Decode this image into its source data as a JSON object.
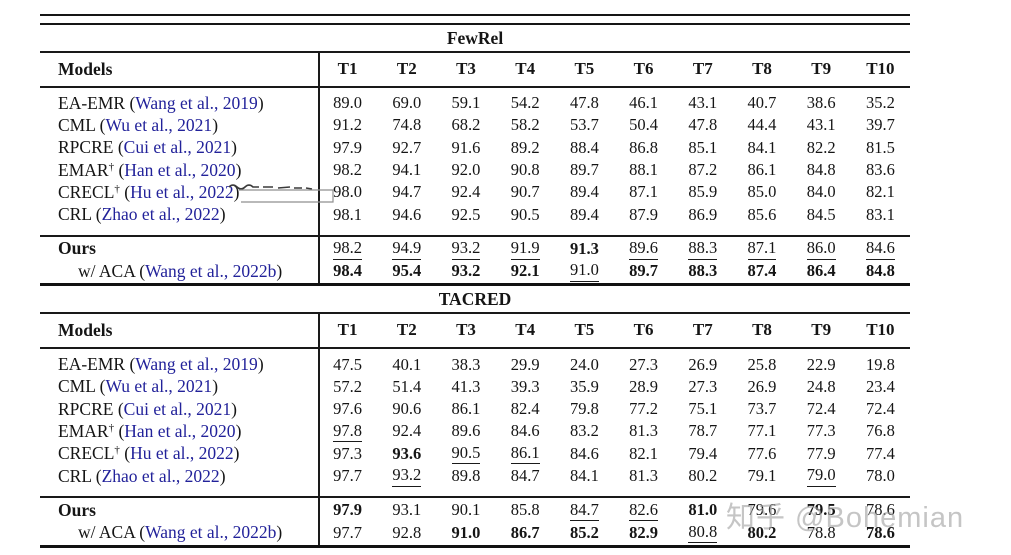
{
  "colors": {
    "text": "#151515",
    "citation_link": "#22229a",
    "rule": "#191919",
    "watermark": "#a2a2a2",
    "background": "#ffffff"
  },
  "models_header": "Models",
  "columns": [
    "T1",
    "T2",
    "T3",
    "T4",
    "T5",
    "T6",
    "T7",
    "T8",
    "T9",
    "T10"
  ],
  "watermark": {
    "text": "知乎 @Bohemian"
  },
  "sections": [
    {
      "title": "FewRel",
      "rows": [
        {
          "name": "EA-EMR",
          "sup": "",
          "cite": "Wang et al., 2019",
          "values": [
            "89.0",
            "69.0",
            "59.1",
            "54.2",
            "47.8",
            "46.1",
            "43.1",
            "40.7",
            "38.6",
            "35.2"
          ],
          "bold": [],
          "underline": []
        },
        {
          "name": "CML",
          "sup": "",
          "cite": "Wu et al., 2021",
          "values": [
            "91.2",
            "74.8",
            "68.2",
            "58.2",
            "53.7",
            "50.4",
            "47.8",
            "44.4",
            "43.1",
            "39.7"
          ],
          "bold": [],
          "underline": []
        },
        {
          "name": "RPCRE",
          "sup": "",
          "cite": "Cui et al., 2021",
          "values": [
            "97.9",
            "92.7",
            "91.6",
            "89.2",
            "88.4",
            "86.8",
            "85.1",
            "84.1",
            "82.2",
            "81.5"
          ],
          "bold": [],
          "underline": []
        },
        {
          "name": "EMAR",
          "sup": "†",
          "cite": "Han et al., 2020",
          "values": [
            "98.2",
            "94.1",
            "92.0",
            "90.8",
            "89.7",
            "88.1",
            "87.2",
            "86.1",
            "84.8",
            "83.6"
          ],
          "bold": [],
          "underline": []
        },
        {
          "name": "CRECL",
          "sup": "†",
          "cite": "Hu et al., 2022",
          "values": [
            "98.0",
            "94.7",
            "92.4",
            "90.7",
            "89.4",
            "87.1",
            "85.9",
            "85.0",
            "84.0",
            "82.1"
          ],
          "bold": [],
          "underline": []
        },
        {
          "name": "CRL",
          "sup": "",
          "cite": "Zhao et al., 2022",
          "values": [
            "98.1",
            "94.6",
            "92.5",
            "90.5",
            "89.4",
            "87.9",
            "86.9",
            "85.6",
            "84.5",
            "83.1"
          ],
          "bold": [],
          "underline": []
        }
      ],
      "ours_rows": [
        {
          "name": "Ours",
          "sup": "",
          "cite": "",
          "boldname": true,
          "indent": false,
          "values": [
            "98.2",
            "94.9",
            "93.2",
            "91.9",
            "91.3",
            "89.6",
            "88.3",
            "87.1",
            "86.0",
            "84.6"
          ],
          "bold": [
            4
          ],
          "underline": [
            0,
            1,
            2,
            3,
            5,
            6,
            7,
            8,
            9
          ]
        },
        {
          "name": "w/ ACA",
          "sup": "",
          "cite": "Wang et al., 2022b",
          "boldname": false,
          "indent": true,
          "values": [
            "98.4",
            "95.4",
            "93.2",
            "92.1",
            "91.0",
            "89.7",
            "88.3",
            "87.4",
            "86.4",
            "84.8"
          ],
          "bold": [
            0,
            1,
            2,
            3,
            5,
            6,
            7,
            8,
            9
          ],
          "underline": [
            4
          ]
        }
      ]
    },
    {
      "title": "TACRED",
      "rows": [
        {
          "name": "EA-EMR",
          "sup": "",
          "cite": "Wang et al., 2019",
          "values": [
            "47.5",
            "40.1",
            "38.3",
            "29.9",
            "24.0",
            "27.3",
            "26.9",
            "25.8",
            "22.9",
            "19.8"
          ],
          "bold": [],
          "underline": []
        },
        {
          "name": "CML",
          "sup": "",
          "cite": "Wu et al., 2021",
          "values": [
            "57.2",
            "51.4",
            "41.3",
            "39.3",
            "35.9",
            "28.9",
            "27.3",
            "26.9",
            "24.8",
            "23.4"
          ],
          "bold": [],
          "underline": []
        },
        {
          "name": "RPCRE",
          "sup": "",
          "cite": "Cui et al., 2021",
          "values": [
            "97.6",
            "90.6",
            "86.1",
            "82.4",
            "79.8",
            "77.2",
            "75.1",
            "73.7",
            "72.4",
            "72.4"
          ],
          "bold": [],
          "underline": []
        },
        {
          "name": "EMAR",
          "sup": "†",
          "cite": "Han et al., 2020",
          "values": [
            "97.8",
            "92.4",
            "89.6",
            "84.6",
            "83.2",
            "81.3",
            "78.7",
            "77.1",
            "77.3",
            "76.8"
          ],
          "bold": [],
          "underline": [
            0
          ]
        },
        {
          "name": "CRECL",
          "sup": "†",
          "cite": "Hu et al., 2022",
          "values": [
            "97.3",
            "93.6",
            "90.5",
            "86.1",
            "84.6",
            "82.1",
            "79.4",
            "77.6",
            "77.9",
            "77.4"
          ],
          "bold": [
            1
          ],
          "underline": [
            2,
            3
          ]
        },
        {
          "name": "CRL",
          "sup": "",
          "cite": "Zhao et al., 2022",
          "values": [
            "97.7",
            "93.2",
            "89.8",
            "84.7",
            "84.1",
            "81.3",
            "80.2",
            "79.1",
            "79.0",
            "78.0"
          ],
          "bold": [],
          "underline": [
            1,
            8
          ]
        }
      ],
      "ours_rows": [
        {
          "name": "Ours",
          "sup": "",
          "cite": "",
          "boldname": true,
          "indent": false,
          "values": [
            "97.9",
            "93.1",
            "90.1",
            "85.8",
            "84.7",
            "82.6",
            "81.0",
            "79.6",
            "79.5",
            "78.6"
          ],
          "bold": [
            0,
            6,
            8
          ],
          "underline": [
            4,
            5
          ]
        },
        {
          "name": "w/ ACA",
          "sup": "",
          "cite": "Wang et al., 2022b",
          "boldname": false,
          "indent": true,
          "values": [
            "97.7",
            "92.8",
            "91.0",
            "86.7",
            "85.2",
            "82.9",
            "80.8",
            "80.2",
            "78.8",
            "78.6"
          ],
          "bold": [
            2,
            3,
            4,
            5,
            7,
            9
          ],
          "underline": [
            6
          ]
        }
      ]
    }
  ]
}
